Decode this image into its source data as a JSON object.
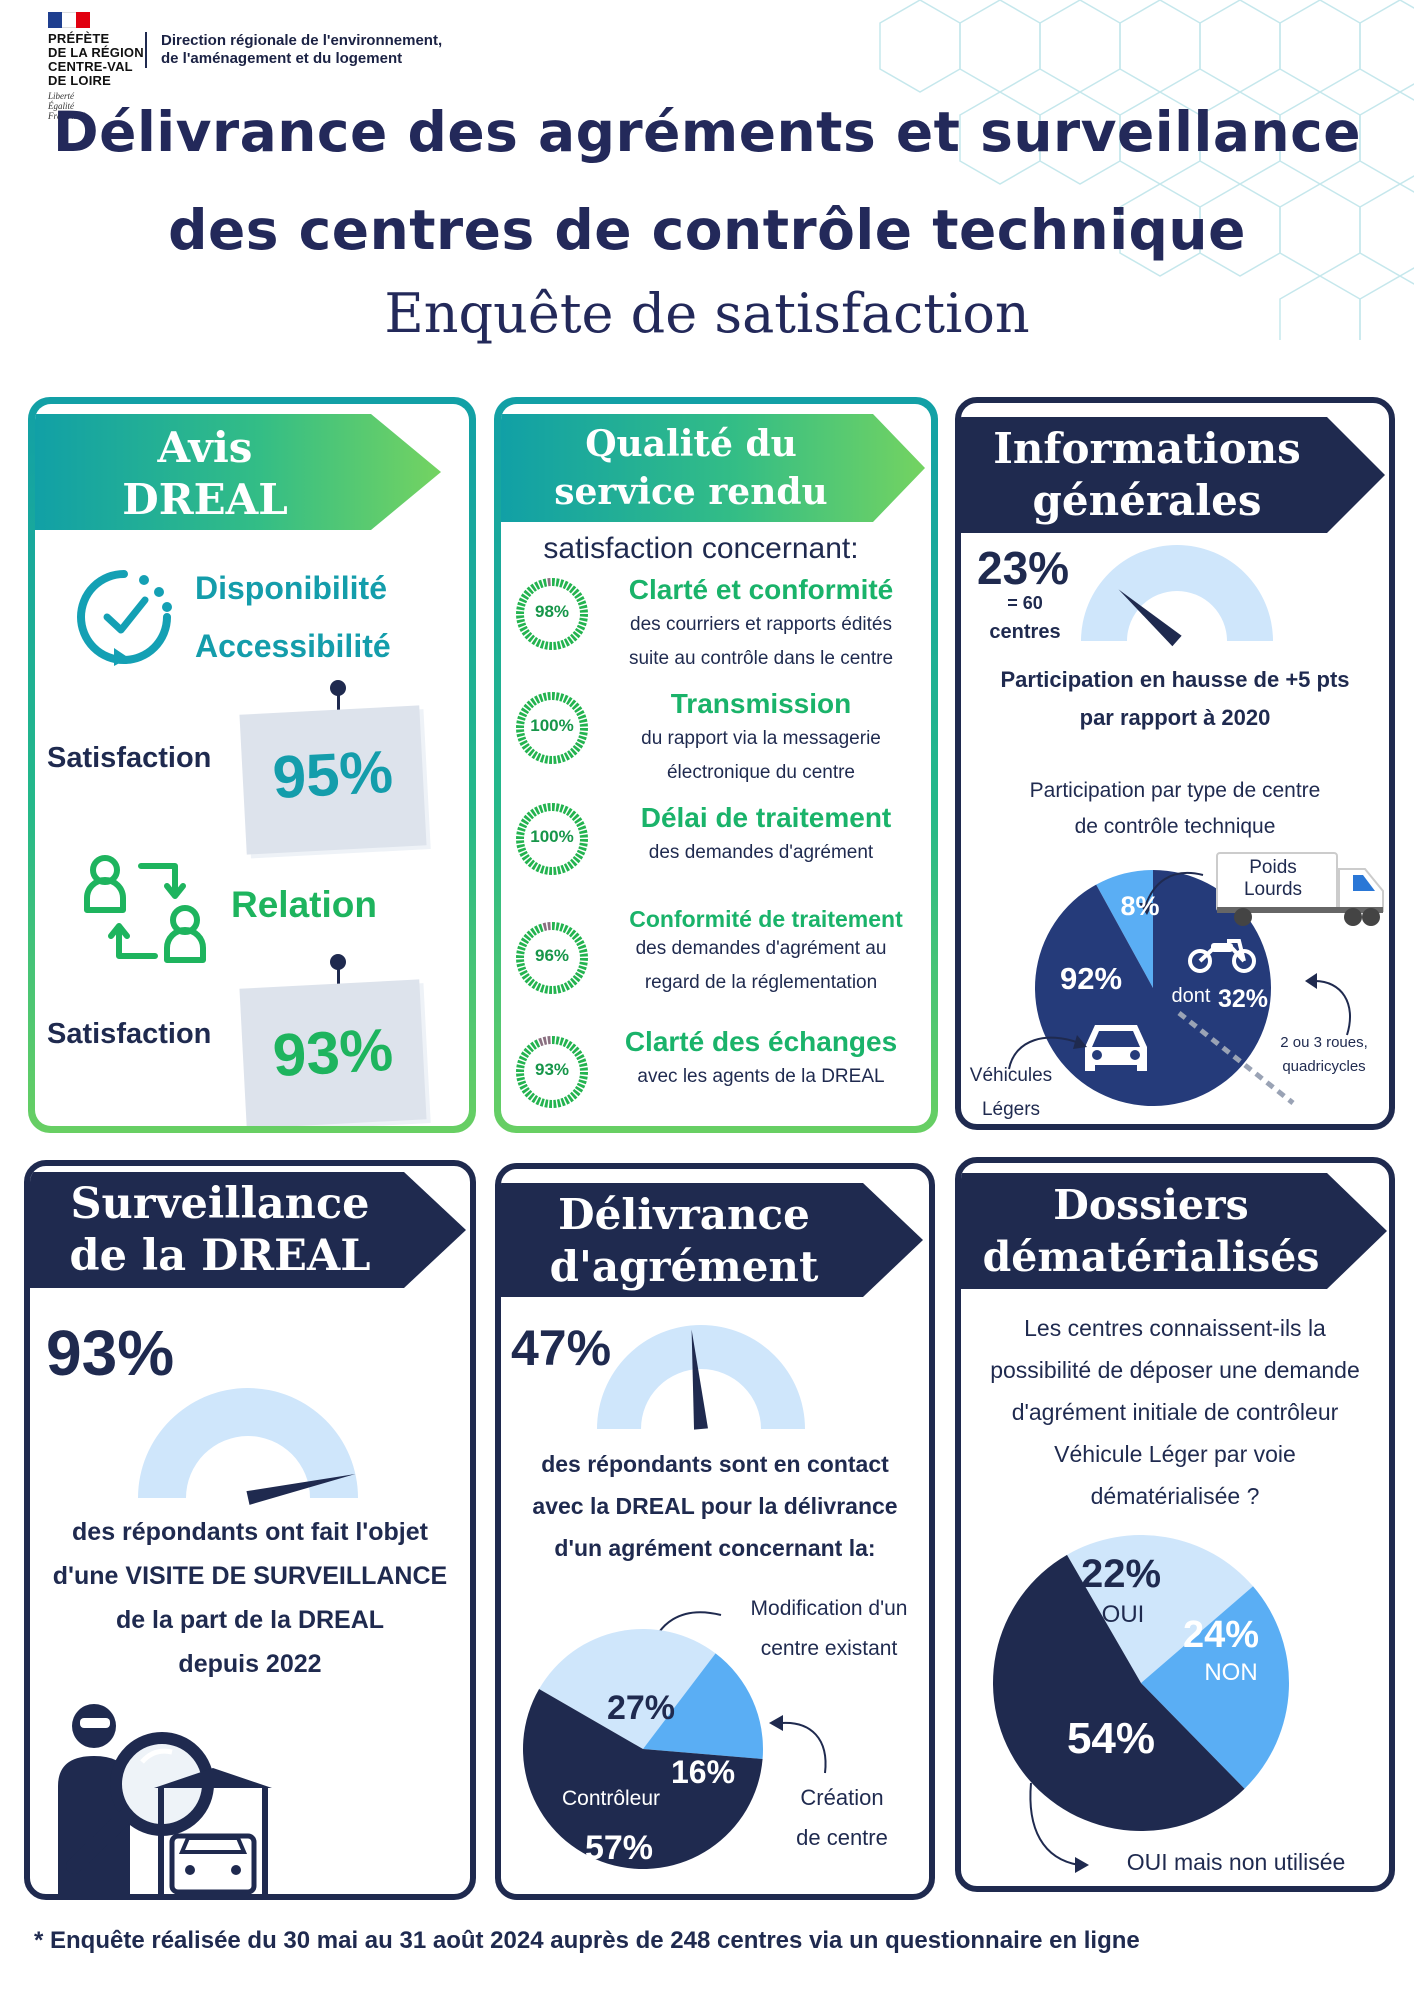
{
  "header": {
    "prefecture_lines": [
      "PRÉFÈTE",
      "DE LA RÉGION",
      "CENTRE-VAL",
      "DE LOIRE"
    ],
    "motto_lines": [
      "Liberté",
      "Égalité",
      "Fraternité"
    ],
    "dreal_lines": [
      "Direction régionale de l'environnement,",
      "de l'aménagement et du logement"
    ],
    "title_line1": "Délivrance des agréments et surveillance",
    "title_line2": "des centres de contrôle technique",
    "subtitle": "Enquête de satisfaction"
  },
  "avis": {
    "banner_line1": "Avis",
    "banner_line2": "DREAL",
    "label1": "Disponibilité",
    "label2": "Accessibilité",
    "sat_label1": "Satisfaction",
    "sat_value1": "95%",
    "label3": "Relation",
    "sat_label2": "Satisfaction",
    "sat_value2": "93%"
  },
  "qualite": {
    "banner_line1": "Qualité du",
    "banner_line2": "service rendu",
    "intro": "satisfaction concernant:",
    "items": [
      {
        "pct": "98%",
        "value": 98,
        "head": "Clarté et conformité",
        "desc1": "des courriers et rapports édités",
        "desc2": "suite au contrôle dans le centre"
      },
      {
        "pct": "100%",
        "value": 100,
        "head": "Transmission",
        "desc1": "du rapport via la messagerie",
        "desc2": "électronique du centre"
      },
      {
        "pct": "100%",
        "value": 100,
        "head": "Délai de traitement",
        "desc1": "des demandes d'agrément",
        "desc2": ""
      },
      {
        "pct": "96%",
        "value": 96,
        "head": "Conformité de traitement",
        "desc1": "des demandes d'agrément au",
        "desc2": "regard de la réglementation"
      },
      {
        "pct": "93%",
        "value": 93,
        "head": "Clarté des échanges",
        "desc1": "avec les agents de la DREAL",
        "desc2": ""
      }
    ]
  },
  "infos": {
    "banner_line1": "Informations",
    "banner_line2": "générales",
    "pct": "23%",
    "eq": "= 60",
    "centres": "centres",
    "gauge_value": 23,
    "hausse_line1": "Participation en hausse de +5 pts",
    "hausse_line2": "par rapport à 2020",
    "type_line1": "Participation par type de centre",
    "type_line2": "de contrôle technique",
    "pl_line1": "Poids",
    "pl_line2": "Lourds",
    "pl_pct": "8%",
    "vl_pct": "92%",
    "dont": "dont",
    "dont_pct": "32%",
    "roues_line1": "2 ou 3 roues,",
    "roues_line2": "quadricycles",
    "vl_line1": "Véhicules",
    "vl_line2": "Légers"
  },
  "surveillance": {
    "banner_line1": "Surveillance",
    "banner_line2": "de la DREAL",
    "pct": "93%",
    "gauge_value": 93,
    "lines": [
      "des répondants ont fait l'objet",
      "d'une VISITE DE SURVEILLANCE",
      "de la part de la DREAL",
      "depuis 2022"
    ]
  },
  "delivrance": {
    "banner_line1": "Délivrance",
    "banner_line2": "d'agrément",
    "pct": "47%",
    "gauge_value": 47,
    "lines": [
      "des répondants sont en contact",
      "avec la DREAL pour la délivrance",
      "d'un agrément concernant la:"
    ],
    "modif_line1": "Modification d'un",
    "modif_line2": "centre existant",
    "creation_line1": "Création",
    "creation_line2": "de centre",
    "controleur": "Contrôleur"
  },
  "dossiers": {
    "banner_line1": "Dossiers",
    "banner_line2": "dématérialisés",
    "question_lines": [
      "Les centres connaissent-ils la",
      "possibilité de déposer une demande",
      "d'agrément initiale de contrôleur",
      "Véhicule Léger par voie",
      "dématérialisée ?"
    ],
    "oui": "OUI",
    "non": "NON",
    "oui_non_utilisee": "OUI mais non utilisée"
  },
  "chart_data": [
    {
      "type": "pie",
      "title": "Participation par type de centre de contrôle technique",
      "categories": [
        "Poids Lourds",
        "Véhicules Légers"
      ],
      "values": [
        8,
        92
      ],
      "labels": [
        "8%",
        "92%"
      ],
      "colors": [
        "#5aaef4",
        "#253b7a"
      ]
    },
    {
      "type": "pie",
      "title": "",
      "categories": [
        "Modification d'un centre existant",
        "Création de centre",
        "Contrôleur"
      ],
      "values": [
        27,
        16,
        57
      ],
      "labels": [
        "27%",
        "16%",
        "57%"
      ],
      "colors": [
        "#cfe6fb",
        "#5aaef4",
        "#1f2a4f"
      ]
    },
    {
      "type": "pie",
      "title": "",
      "categories": [
        "OUI",
        "NON",
        "OUI mais non utilisée"
      ],
      "values": [
        22,
        24,
        54
      ],
      "labels": [
        "22%",
        "24%",
        "54%"
      ],
      "colors": [
        "#cfe6fb",
        "#5aaef4",
        "#1f2a4f"
      ]
    }
  ],
  "footnote": "* Enquête réalisée du 30 mai au 31 août 2024 auprès de 248 centres via un questionnaire en ligne"
}
